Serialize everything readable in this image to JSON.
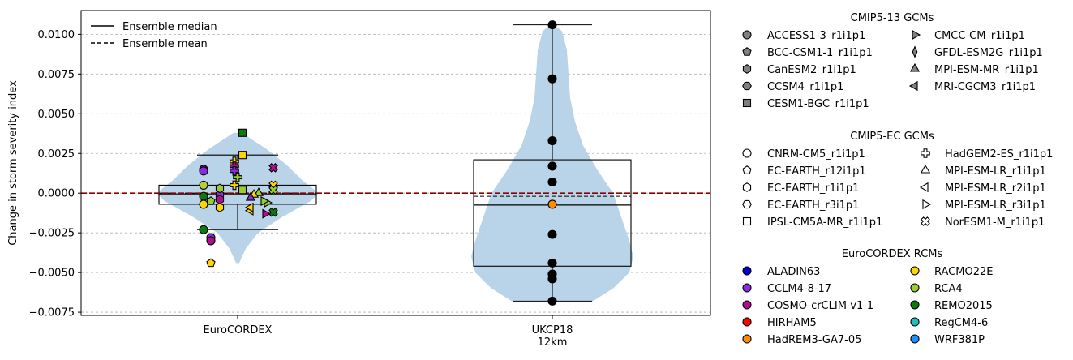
{
  "chart_data": {
    "type": "violin",
    "ylabel": "Change in storm severity index",
    "categories": [
      "EuroCORDEX",
      "UKCP18\n12km"
    ],
    "ylim": [
      -0.0077,
      0.0115
    ],
    "yticks": [
      {
        "v": 0.01,
        "label": "0.0100"
      },
      {
        "v": 0.0075,
        "label": "0.0075"
      },
      {
        "v": 0.005,
        "label": "0.0050"
      },
      {
        "v": 0.0025,
        "label": "0.0025"
      },
      {
        "v": 0.0,
        "label": "0.0000"
      },
      {
        "v": -0.0025,
        "label": "−0.0025"
      },
      {
        "v": -0.005,
        "label": "−0.0050"
      },
      {
        "v": -0.0075,
        "label": "−0.0075"
      }
    ],
    "grid": "y dashed",
    "zero_line_color": "#8b0000",
    "violin_color": "#b9d4e9",
    "groups": [
      {
        "name": "EuroCORDEX",
        "box": {
          "q1": -0.0007,
          "median": -5e-05,
          "q3": 0.0005,
          "whisker_low": -0.0023,
          "whisker_high": 0.0024,
          "mean": 0.0
        },
        "violin": [
          [
            -0.0044,
            0.02
          ],
          [
            -0.0035,
            0.1
          ],
          [
            -0.0025,
            0.25
          ],
          [
            -0.0015,
            0.55
          ],
          [
            -0.0005,
            0.9
          ],
          [
            0.0,
            1.0
          ],
          [
            0.0008,
            0.8
          ],
          [
            0.0018,
            0.6
          ],
          [
            0.0028,
            0.35
          ],
          [
            0.0038,
            0.05
          ]
        ],
        "points": [
          {
            "y": 0.0005,
            "m": "o",
            "c": "#bccb3a"
          },
          {
            "y": 0.0015,
            "m": "o",
            "c": "#b20c8f"
          },
          {
            "y": 0.0014,
            "m": "o",
            "c": "#8a2be2"
          },
          {
            "y": -0.0002,
            "m": "o",
            "c": "#0c7a0c"
          },
          {
            "y": -0.0007,
            "m": "o",
            "c": "#ffd700"
          },
          {
            "y": -0.0023,
            "m": "o",
            "c": "#0c7a0c"
          },
          {
            "y": -0.0028,
            "m": "o",
            "c": "#8a2be2"
          },
          {
            "y": -0.003,
            "m": "o",
            "c": "#b20c8f"
          },
          {
            "y": -0.0044,
            "m": "pent",
            "c": "#ffd700"
          },
          {
            "y": -0.0005,
            "m": "pent",
            "c": "#9acd32"
          },
          {
            "y": -0.0009,
            "m": "hex",
            "c": "#ffd700"
          },
          {
            "y": -0.0001,
            "m": "hex",
            "c": "#8a2be2"
          },
          {
            "y": -0.0004,
            "m": "hex",
            "c": "#b20c8f"
          },
          {
            "y": 0.0003,
            "m": "hex",
            "c": "#9acd32"
          },
          {
            "y": 0.002,
            "m": "plus",
            "c": "#ffd700"
          },
          {
            "y": 0.0017,
            "m": "plus",
            "c": "#b20c8f"
          },
          {
            "y": 0.0014,
            "m": "plus",
            "c": "#8a2be2"
          },
          {
            "y": 0.001,
            "m": "plus",
            "c": "#9acd32"
          },
          {
            "y": 0.0005,
            "m": "plus",
            "c": "#ffd700"
          },
          {
            "y": 0.0024,
            "m": "s",
            "c": "#ffd700"
          },
          {
            "y": 0.0038,
            "m": "s",
            "c": "#0c7a0c"
          },
          {
            "y": 0.0002,
            "m": "s",
            "c": "#9acd32"
          },
          {
            "y": 0.0,
            "m": "tri",
            "c": "#9acd32"
          },
          {
            "y": -0.0001,
            "m": "tri",
            "c": "#ffd700"
          },
          {
            "y": -0.0003,
            "m": "tri",
            "c": "#8a2be2"
          },
          {
            "y": -0.0011,
            "m": "tril",
            "c": "#ffd700"
          },
          {
            "y": -0.0009,
            "m": "tril",
            "c": "#ffd700"
          },
          {
            "y": -0.0006,
            "m": "trir",
            "c": "#9acd32"
          },
          {
            "y": -0.0013,
            "m": "trir",
            "c": "#b20c8f"
          },
          {
            "y": -0.0005,
            "m": "trir",
            "c": "#9acd32"
          },
          {
            "y": 0.0016,
            "m": "x",
            "c": "#b20c8f"
          },
          {
            "y": 0.0005,
            "m": "x",
            "c": "#ffd700"
          },
          {
            "y": 0.0002,
            "m": "x",
            "c": "#9acd32"
          },
          {
            "y": -0.0012,
            "m": "x",
            "c": "#0c7a0c"
          }
        ]
      },
      {
        "name": "UKCP18",
        "box": {
          "q1": -0.0046,
          "median": -0.00075,
          "q3": 0.0021,
          "whisker_low": -0.0068,
          "whisker_high": 0.0106,
          "mean": -0.0002
        },
        "violin": [
          [
            -0.0068,
            0.5
          ],
          [
            -0.006,
            0.75
          ],
          [
            -0.005,
            0.95
          ],
          [
            -0.004,
            1.0
          ],
          [
            -0.003,
            0.95
          ],
          [
            -0.0015,
            0.85
          ],
          [
            0.0,
            0.75
          ],
          [
            0.0015,
            0.55
          ],
          [
            0.003,
            0.38
          ],
          [
            0.0045,
            0.28
          ],
          [
            0.006,
            0.22
          ],
          [
            0.0075,
            0.2
          ],
          [
            0.009,
            0.18
          ],
          [
            0.0102,
            0.12
          ],
          [
            0.0106,
            0.02
          ]
        ],
        "points": [
          {
            "y": 0.0106,
            "m": "o",
            "c": "#000000"
          },
          {
            "y": 0.0072,
            "m": "o",
            "c": "#000000"
          },
          {
            "y": 0.0033,
            "m": "o",
            "c": "#000000"
          },
          {
            "y": 0.0017,
            "m": "o",
            "c": "#000000"
          },
          {
            "y": 0.0007,
            "m": "o",
            "c": "#000000"
          },
          {
            "y": -0.0007,
            "m": "o",
            "c": "#ff8c00"
          },
          {
            "y": -0.0026,
            "m": "o",
            "c": "#000000"
          },
          {
            "y": -0.0044,
            "m": "o",
            "c": "#000000"
          },
          {
            "y": -0.0051,
            "m": "o",
            "c": "#000000"
          },
          {
            "y": -0.0054,
            "m": "o",
            "c": "#000000"
          },
          {
            "y": -0.0068,
            "m": "o",
            "c": "#000000"
          }
        ]
      }
    ]
  },
  "legend_lines": [
    {
      "label": "Ensemble median",
      "style": "solid"
    },
    {
      "label": "Ensemble mean",
      "style": "dashed"
    }
  ],
  "legend_groups": [
    {
      "title": "CMIP5-13 GCMs",
      "col1": [
        {
          "label": "ACCESS1-3_r1i1p1",
          "m": "o",
          "c": "#808080"
        },
        {
          "label": "BCC-CSM1-1_r1i1p1",
          "m": "pent",
          "c": "#808080"
        },
        {
          "label": "CanESM2_r1i1p1",
          "m": "hex",
          "c": "#808080"
        },
        {
          "label": "CCSM4_r1i1p1",
          "m": "hex2",
          "c": "#808080"
        },
        {
          "label": "CESM1-BGC_r1i1p1",
          "m": "s",
          "c": "#808080"
        }
      ],
      "col2": [
        {
          "label": "CMCC-CM_r1i1p1",
          "m": "trir",
          "c": "#808080"
        },
        {
          "label": "GFDL-ESM2G_r1i1p1",
          "m": "dthin",
          "c": "#808080"
        },
        {
          "label": "MPI-ESM-MR_r1i1p1",
          "m": "tri",
          "c": "#808080"
        },
        {
          "label": "MRI-CGCM3_r1i1p1",
          "m": "tril",
          "c": "#808080"
        }
      ]
    },
    {
      "title": "CMIP5-EC GCMs",
      "col1": [
        {
          "label": "CNRM-CM5_r1i1p1",
          "m": "o",
          "c": "#ffffff"
        },
        {
          "label": "EC-EARTH_r12i1p1",
          "m": "pent",
          "c": "#ffffff"
        },
        {
          "label": "EC-EARTH_r1i1p1",
          "m": "hex",
          "c": "#ffffff"
        },
        {
          "label": "EC-EARTH_r3i1p1",
          "m": "hex2",
          "c": "#ffffff"
        },
        {
          "label": "IPSL-CM5A-MR_r1i1p1",
          "m": "s",
          "c": "#ffffff"
        }
      ],
      "col2": [
        {
          "label": "HadGEM2-ES_r1i1p1",
          "m": "plus",
          "c": "#ffffff"
        },
        {
          "label": "MPI-ESM-LR_r1i1p1",
          "m": "tri",
          "c": "#ffffff"
        },
        {
          "label": "MPI-ESM-LR_r2i1p1",
          "m": "tril",
          "c": "#ffffff"
        },
        {
          "label": "MPI-ESM-LR_r3i1p1",
          "m": "trir",
          "c": "#ffffff"
        },
        {
          "label": "NorESM1-M_r1i1p1",
          "m": "x",
          "c": "#ffffff"
        }
      ]
    },
    {
      "title": "EuroCORDEX RCMs",
      "col1": [
        {
          "label": "ALADIN63",
          "m": "o",
          "c": "#0000cd"
        },
        {
          "label": "CCLM4-8-17",
          "m": "o",
          "c": "#8a2be2"
        },
        {
          "label": "COSMO-crCLIM-v1-1",
          "m": "o",
          "c": "#b20c8f"
        },
        {
          "label": "HIRHAM5",
          "m": "o",
          "c": "#ff0000"
        },
        {
          "label": "HadREM3-GA7-05",
          "m": "o",
          "c": "#ff8c00"
        }
      ],
      "col2": [
        {
          "label": "RACMO22E",
          "m": "o",
          "c": "#ffd700"
        },
        {
          "label": "RCA4",
          "m": "o",
          "c": "#9acd32"
        },
        {
          "label": "REMO2015",
          "m": "o",
          "c": "#0c7a0c"
        },
        {
          "label": "RegCM4-6",
          "m": "o",
          "c": "#20c0c0"
        },
        {
          "label": "WRF381P",
          "m": "o",
          "c": "#1e90ff"
        }
      ]
    }
  ]
}
